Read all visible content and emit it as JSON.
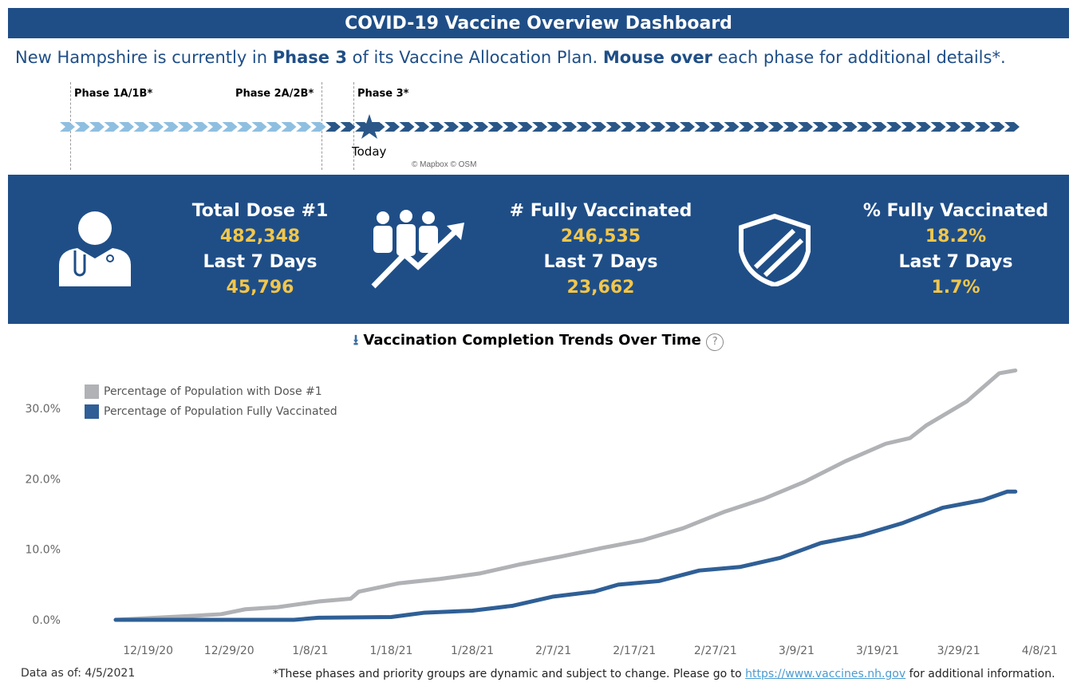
{
  "header": {
    "title": "COVID-19 Vaccine Overview Dashboard"
  },
  "subtitle": {
    "p1": "New Hampshire is currently in ",
    "p2": "Phase 3",
    "p3": " of its Vaccine Allocation Plan. ",
    "p4": "Mouse over",
    "p5": " each phase for additional details*."
  },
  "timeline": {
    "phases": [
      "Phase 1A/1B*",
      "Phase 2A/2B*",
      "Phase 3*"
    ],
    "today": "Today",
    "attribution": "© Mapbox © OSM",
    "colors": {
      "past": "#8fbfe0",
      "current": "#2a5788"
    }
  },
  "kpis": [
    {
      "title": "Total Dose #1",
      "value": "482,348",
      "sub": "Last 7 Days",
      "sub_value": "45,796",
      "icon": "doctor-icon"
    },
    {
      "title": "# Fully Vaccinated",
      "value": "246,535",
      "sub": "Last 7 Days",
      "sub_value": "23,662",
      "icon": "people-trend-icon"
    },
    {
      "title": "% Fully Vaccinated",
      "value": "18.2%",
      "sub": "Last 7 Days",
      "sub_value": "1.7%",
      "icon": "shield-icon"
    }
  ],
  "chart_data": {
    "type": "line",
    "title": "Vaccination Completion Trends Over Time",
    "xlabel": "",
    "ylabel": "",
    "ylim": [
      0,
      36
    ],
    "yticks": [
      "0.0%",
      "10.0%",
      "20.0%",
      "30.0%"
    ],
    "xticks": [
      "12/19/20",
      "12/29/20",
      "1/8/21",
      "1/18/21",
      "1/28/21",
      "2/7/21",
      "2/17/21",
      "2/27/21",
      "3/9/21",
      "3/19/21",
      "3/29/21",
      "4/8/21"
    ],
    "legend_position": "top-left",
    "series": [
      {
        "name": "Percentage of Population with Dose #1",
        "color": "#b0b2b5",
        "points": [
          [
            "12/15/20",
            0
          ],
          [
            "12/20/20",
            0.3
          ],
          [
            "12/25/20",
            0.6
          ],
          [
            "12/28/20",
            0.8
          ],
          [
            "12/31/20",
            1.5
          ],
          [
            "1/4/21",
            1.8
          ],
          [
            "1/9/21",
            2.6
          ],
          [
            "1/13/21",
            3.0
          ],
          [
            "1/14/21",
            4.0
          ],
          [
            "1/19/21",
            5.2
          ],
          [
            "1/24/21",
            5.8
          ],
          [
            "1/29/21",
            6.6
          ],
          [
            "2/3/21",
            7.9
          ],
          [
            "2/8/21",
            9.0
          ],
          [
            "2/13/21",
            10.2
          ],
          [
            "2/18/21",
            11.3
          ],
          [
            "2/23/21",
            13.0
          ],
          [
            "2/28/21",
            15.3
          ],
          [
            "3/5/21",
            17.2
          ],
          [
            "3/10/21",
            19.6
          ],
          [
            "3/15/21",
            22.5
          ],
          [
            "3/20/21",
            25.0
          ],
          [
            "3/23/21",
            25.8
          ],
          [
            "3/25/21",
            27.6
          ],
          [
            "3/30/21",
            31.0
          ],
          [
            "4/3/21",
            35.0
          ],
          [
            "4/5/21",
            35.4
          ]
        ]
      },
      {
        "name": "Percentage of Population Fully Vaccinated",
        "color": "#2f5f96",
        "points": [
          [
            "12/15/20",
            0
          ],
          [
            "1/6/21",
            0
          ],
          [
            "1/9/21",
            0.3
          ],
          [
            "1/18/21",
            0.4
          ],
          [
            "1/22/21",
            1.0
          ],
          [
            "1/28/21",
            1.3
          ],
          [
            "2/2/21",
            2.0
          ],
          [
            "2/7/21",
            3.3
          ],
          [
            "2/12/21",
            4.0
          ],
          [
            "2/15/21",
            5.0
          ],
          [
            "2/20/21",
            5.5
          ],
          [
            "2/25/21",
            7.0
          ],
          [
            "3/2/21",
            7.5
          ],
          [
            "3/7/21",
            8.8
          ],
          [
            "3/12/21",
            10.9
          ],
          [
            "3/17/21",
            12.0
          ],
          [
            "3/22/21",
            13.7
          ],
          [
            "3/27/21",
            15.9
          ],
          [
            "4/1/21",
            17.0
          ],
          [
            "4/4/21",
            18.2
          ],
          [
            "4/5/21",
            18.2
          ]
        ]
      }
    ]
  },
  "footer": {
    "data_as_of": "Data as of: 4/5/2021",
    "note_pre": "*These phases and priority groups are dynamic and subject to change. Please go to ",
    "link": "https://www.vaccines.nh.gov",
    "note_post": " for additional information."
  }
}
